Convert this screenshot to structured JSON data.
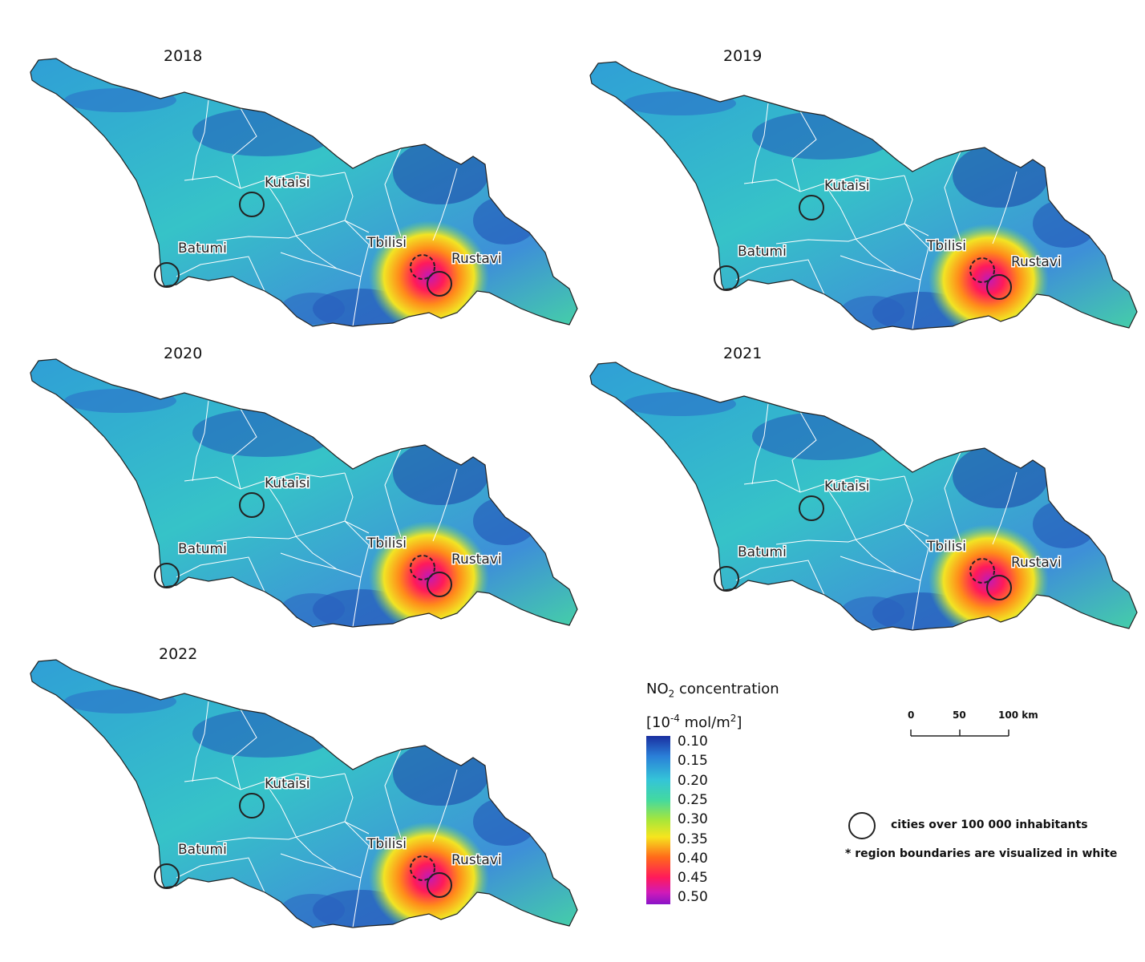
{
  "panels": [
    {
      "year": "2018"
    },
    {
      "year": "2019"
    },
    {
      "year": "2020"
    },
    {
      "year": "2021"
    },
    {
      "year": "2022"
    }
  ],
  "cities": [
    "Kutaisi",
    "Batumi",
    "Tbilisi",
    "Rustavi"
  ],
  "legend": {
    "title_line1": "NO",
    "title_sub": "2",
    "title_line1_rest": " concentration",
    "title_line2_a": "[10",
    "title_line2_sup": "-4",
    "title_line2_b": " mol/m",
    "title_line2_sup2": "2",
    "title_line2_c": "]",
    "ticks": [
      "0.10",
      "0.15",
      "0.20",
      "0.25",
      "0.30",
      "0.35",
      "0.40",
      "0.45",
      "0.50"
    ],
    "colors": [
      "#1a2fa0",
      "#2a7fd8",
      "#34c4d8",
      "#43d9a0",
      "#a8e63a",
      "#f6e51e",
      "#ff6a1a",
      "#ff1a5a",
      "#8a14c8"
    ]
  },
  "scale": {
    "labels": [
      "0",
      "50",
      "100 km"
    ]
  },
  "notes": {
    "cities_legend": "cities over 100 000 inhabitants",
    "regions_note": "* region boundaries are visualized in white"
  }
}
